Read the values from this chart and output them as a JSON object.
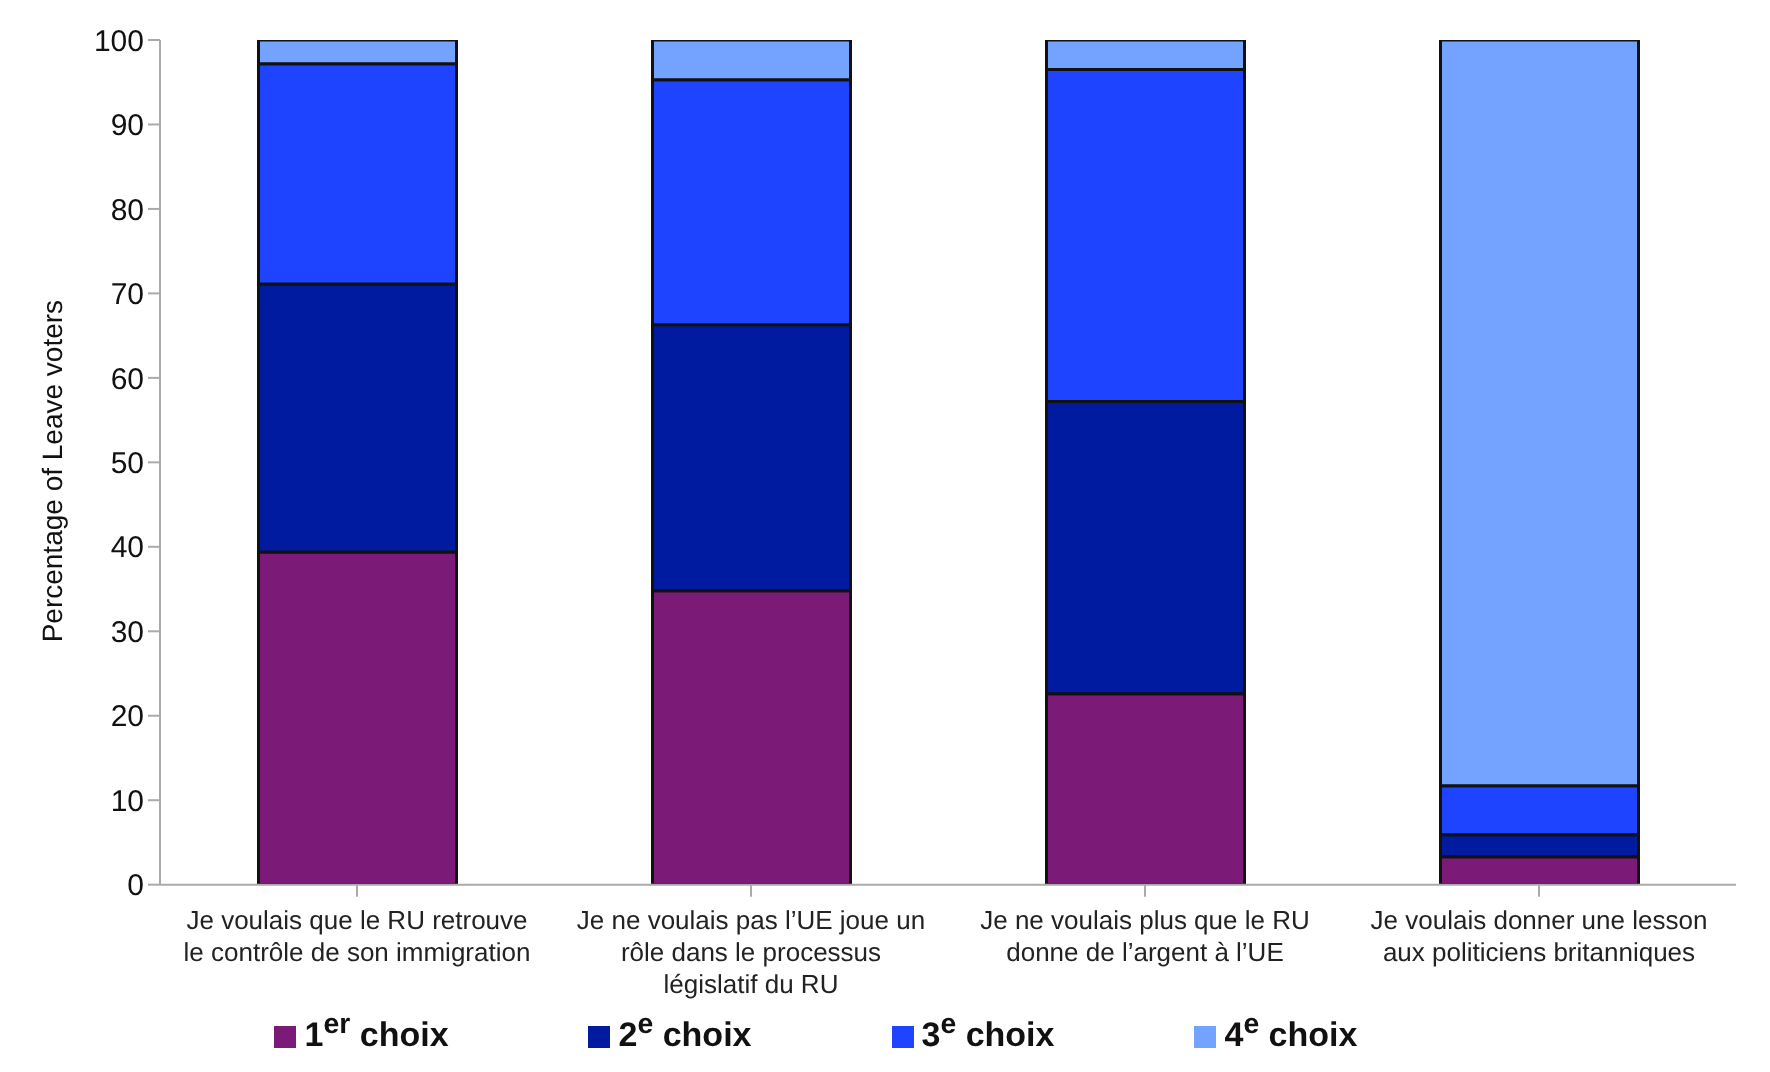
{
  "chart_data": {
    "type": "bar",
    "stacked": true,
    "ylabel": "Percentage of Leave voters",
    "categories": [
      "Je voulais que le RU retrouve le contrôle de son immigration",
      "Je ne voulais pas l’UE joue un rôle dans le processus législatif du RU",
      "Je ne voulais plus que le RU donne de l’argent à l’UE",
      "Je voulais donner une lesson aux politiciens britanniques"
    ],
    "series": [
      {
        "name": "1$^{er}$ choix",
        "color": "#7b1b77",
        "values": [
          39.4,
          34.8,
          22.6,
          3.3
        ]
      },
      {
        "name": "2$^{e}$ choix",
        "color": "#001ba0",
        "values": [
          31.7,
          31.5,
          34.6,
          2.6
        ]
      },
      {
        "name": "3$^{e}$ choix",
        "color": "#1e44ff",
        "values": [
          26.1,
          29.0,
          39.3,
          5.8
        ]
      },
      {
        "name": "4$^{e}$ choix",
        "color": "#74a2ff",
        "values": [
          2.8,
          4.7,
          3.5,
          88.3
        ]
      }
    ],
    "ylim": [
      0,
      100
    ],
    "yticks": [
      0,
      10,
      20,
      30,
      40,
      50,
      60,
      70,
      80,
      90,
      100
    ],
    "grid": false,
    "legend": "bottom"
  }
}
